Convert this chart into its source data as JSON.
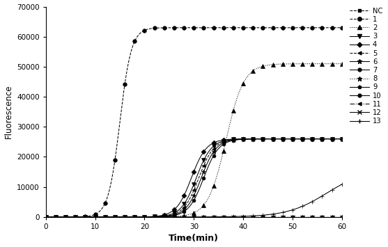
{
  "title": "",
  "xlabel": "Time(min)",
  "ylabel": "Fluorescence",
  "xlim": [
    0,
    60
  ],
  "ylim": [
    0,
    70000
  ],
  "xticks": [
    0,
    10,
    20,
    30,
    40,
    50,
    60
  ],
  "yticks": [
    0,
    10000,
    20000,
    30000,
    40000,
    50000,
    60000,
    70000
  ],
  "curves": [
    {
      "label": "NC",
      "plateau": 0,
      "t50": 999,
      "k": 1.0,
      "linestyle": "--",
      "marker": "s",
      "markersize": 3.5,
      "markevery": 3
    },
    {
      "label": "1",
      "plateau": 63000,
      "t50": 15.0,
      "k": 0.85,
      "linestyle": "--",
      "marker": "o",
      "markersize": 4,
      "markevery": 2
    },
    {
      "label": "2",
      "plateau": 51000,
      "t50": 36.5,
      "k": 0.55,
      "linestyle": ":",
      "marker": "^",
      "markersize": 4,
      "markevery": 2
    },
    {
      "label": "3",
      "plateau": 26000,
      "t50": 30.5,
      "k": 0.65,
      "linestyle": "-",
      "marker": "v",
      "markersize": 4,
      "markevery": 2
    },
    {
      "label": "4",
      "plateau": 26000,
      "t50": 29.5,
      "k": 0.65,
      "linestyle": "-",
      "marker": "D",
      "markersize": 3.5,
      "markevery": 2
    },
    {
      "label": "5",
      "plateau": 26000,
      "t50": 31.0,
      "k": 0.65,
      "linestyle": "--",
      "marker": "<",
      "markersize": 3.5,
      "markevery": 2
    },
    {
      "label": "6",
      "plateau": 26000,
      "t50": 31.5,
      "k": 0.65,
      "linestyle": "-",
      "marker": "*",
      "markersize": 4.5,
      "markevery": 2
    },
    {
      "label": "7",
      "plateau": 26000,
      "t50": 32.0,
      "k": 0.65,
      "linestyle": "-",
      "marker": "o",
      "markersize": 3.5,
      "markevery": 2
    },
    {
      "label": "8",
      "plateau": 0,
      "t50": 999,
      "k": 1.0,
      "linestyle": ":",
      "marker": "*",
      "markersize": 4.5,
      "markevery": 3
    },
    {
      "label": "9",
      "plateau": 0,
      "t50": 999,
      "k": 1.0,
      "linestyle": "-",
      "marker": "p",
      "markersize": 3.5,
      "markevery": 3
    },
    {
      "label": "10",
      "plateau": 0,
      "t50": 999,
      "k": 1.0,
      "linestyle": "-",
      "marker": "o",
      "markersize": 3.5,
      "markevery": 3
    },
    {
      "label": "11",
      "plateau": 0,
      "t50": 999,
      "k": 1.0,
      "linestyle": "-.",
      "marker": "<",
      "markersize": 3.5,
      "markevery": 3
    },
    {
      "label": "12",
      "plateau": 0,
      "t50": 999,
      "k": 1.0,
      "linestyle": "-",
      "marker": "x",
      "markersize": 4,
      "markevery": 3
    },
    {
      "label": "13",
      "plateau": 16000,
      "t50": 57.0,
      "k": 0.25,
      "linestyle": "-",
      "marker": "+",
      "markersize": 4,
      "markevery": 2
    }
  ],
  "legend_linestyles": [
    "--",
    "--",
    ":",
    "-",
    "-",
    "--",
    "-",
    "-",
    ":",
    "-",
    "-",
    "-.",
    "-",
    "-"
  ],
  "legend_markers": [
    "s",
    "o",
    "^",
    "v",
    "D",
    "<",
    "*",
    "o",
    "*",
    "p",
    "o",
    "<",
    "x",
    "+"
  ],
  "legend_msizes": [
    3.5,
    4,
    4,
    4,
    3.5,
    3.5,
    4.5,
    3.5,
    4.5,
    3.5,
    3.5,
    3.5,
    4,
    4
  ],
  "legend_labels": [
    "NC",
    "1",
    "2",
    "3",
    "4",
    "5",
    "6",
    "7",
    "8",
    "9",
    "10",
    "11",
    "12",
    "13"
  ]
}
